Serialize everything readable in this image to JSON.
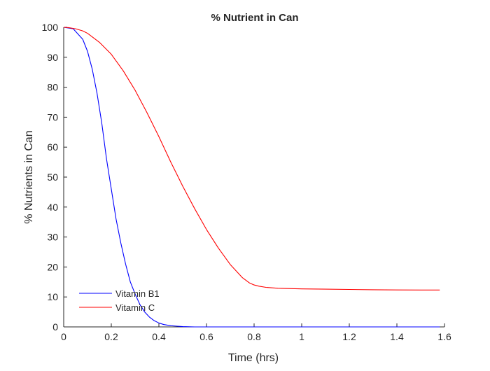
{
  "chart_data": {
    "type": "line",
    "title": "% Nutrient in Can",
    "xlabel": "Time (hrs)",
    "ylabel": "% Nutrients in Can",
    "xlim": [
      0,
      1.6
    ],
    "ylim": [
      0,
      100
    ],
    "xticks": [
      0,
      0.2,
      0.4,
      0.6,
      0.8,
      1,
      1.2,
      1.4,
      1.6
    ],
    "xtick_labels": [
      "0",
      "0.2",
      "0.4",
      "0.6",
      "0.8",
      "1",
      "1.2",
      "1.4",
      "1.6"
    ],
    "yticks": [
      0,
      10,
      20,
      30,
      40,
      50,
      60,
      70,
      80,
      90,
      100
    ],
    "ytick_labels": [
      "0",
      "10",
      "20",
      "30",
      "40",
      "50",
      "60",
      "70",
      "80",
      "90",
      "100"
    ],
    "grid": false,
    "legend_position": "bottom-left",
    "series": [
      {
        "name": "Vitamin B1",
        "color": "#0000ff",
        "x": [
          0,
          0.04,
          0.08,
          0.1,
          0.12,
          0.14,
          0.16,
          0.18,
          0.2,
          0.22,
          0.24,
          0.26,
          0.28,
          0.3,
          0.32,
          0.34,
          0.36,
          0.38,
          0.4,
          0.42,
          0.45,
          0.5,
          0.55,
          0.6,
          0.8,
          1.0,
          1.2,
          1.4,
          1.58
        ],
        "y": [
          100,
          99.5,
          96,
          92,
          86,
          78,
          68,
          56,
          46,
          36,
          28,
          21,
          15,
          11,
          7.5,
          5,
          3.3,
          2.1,
          1.3,
          0.8,
          0.4,
          0.1,
          0,
          0,
          0,
          0,
          0,
          0,
          0
        ]
      },
      {
        "name": "Vitamin C",
        "color": "#ff0000",
        "x": [
          0,
          0.02,
          0.05,
          0.08,
          0.1,
          0.15,
          0.2,
          0.25,
          0.3,
          0.35,
          0.4,
          0.45,
          0.5,
          0.55,
          0.6,
          0.65,
          0.7,
          0.75,
          0.78,
          0.8,
          0.82,
          0.85,
          0.9,
          1.0,
          1.1,
          1.2,
          1.3,
          1.4,
          1.5,
          1.58
        ],
        "y": [
          100,
          99.9,
          99.5,
          98.8,
          98,
          95,
          91,
          85.5,
          79,
          71.5,
          63.5,
          55,
          47,
          39.5,
          32.5,
          26.3,
          20.8,
          16.5,
          14.7,
          14,
          13.6,
          13.2,
          12.9,
          12.7,
          12.6,
          12.5,
          12.4,
          12.35,
          12.3,
          12.3
        ]
      }
    ]
  }
}
